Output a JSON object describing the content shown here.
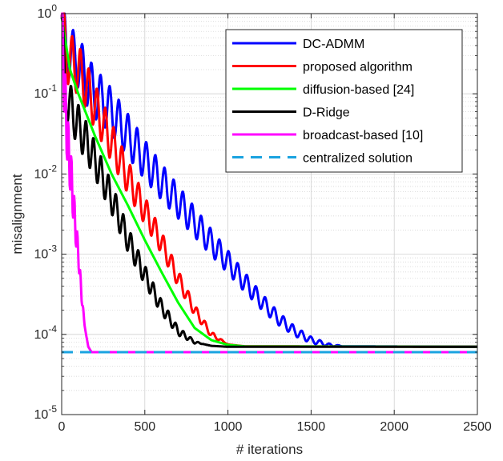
{
  "chart_data": {
    "type": "line",
    "xlabel": "# iterations",
    "ylabel": "misalignment",
    "xlim": [
      0,
      2500
    ],
    "ylim": [
      1e-05,
      1
    ],
    "yscale": "log",
    "grid": true,
    "legend_position": "top-right",
    "x_ticks": [
      0,
      500,
      1000,
      1500,
      2000,
      2500
    ],
    "y_ticks": [
      {
        "value": 1,
        "base": "10",
        "exp": "0"
      },
      {
        "value": 0.1,
        "base": "10",
        "exp": "-1"
      },
      {
        "value": 0.01,
        "base": "10",
        "exp": "-2"
      },
      {
        "value": 0.001,
        "base": "10",
        "exp": "-3"
      },
      {
        "value": 0.0001,
        "base": "10",
        "exp": "-4"
      },
      {
        "value": 1e-05,
        "base": "10",
        "exp": "-5"
      }
    ],
    "series": [
      {
        "name": "DC-ADMM",
        "color": "#0000ff",
        "dash": false,
        "points": [
          [
            0,
            0.9
          ],
          [
            30,
            0.35
          ],
          [
            60,
            0.3
          ],
          [
            100,
            0.25
          ],
          [
            150,
            0.15
          ],
          [
            200,
            0.1
          ],
          [
            250,
            0.08
          ],
          [
            300,
            0.06
          ],
          [
            400,
            0.03
          ],
          [
            500,
            0.015
          ],
          [
            600,
            0.008
          ],
          [
            700,
            0.0045
          ],
          [
            800,
            0.0025
          ],
          [
            900,
            0.0014
          ],
          [
            1000,
            0.0008
          ],
          [
            1100,
            0.00045
          ],
          [
            1200,
            0.00026
          ],
          [
            1300,
            0.00016
          ],
          [
            1400,
            0.00011
          ],
          [
            1500,
            8.5e-05
          ],
          [
            1600,
            7.4e-05
          ],
          [
            1700,
            7.1e-05
          ],
          [
            2500,
            7e-05
          ]
        ],
        "oscillation": {
          "period": 55,
          "amplitude": 0.35,
          "fade_end": 1700
        }
      },
      {
        "name": "proposed algorithm",
        "color": "#ff0000",
        "dash": false,
        "points": [
          [
            0,
            0.9
          ],
          [
            30,
            0.3
          ],
          [
            60,
            0.25
          ],
          [
            100,
            0.2
          ],
          [
            150,
            0.12
          ],
          [
            200,
            0.07
          ],
          [
            300,
            0.025
          ],
          [
            400,
            0.009
          ],
          [
            500,
            0.0035
          ],
          [
            600,
            0.0014
          ],
          [
            700,
            0.0005
          ],
          [
            800,
            0.0002
          ],
          [
            900,
            0.0001
          ],
          [
            1000,
            7.5e-05
          ],
          [
            1100,
            7.1e-05
          ],
          [
            2500,
            7e-05
          ]
        ],
        "oscillation": {
          "period": 50,
          "amplitude": 0.35,
          "fade_end": 1000
        }
      },
      {
        "name": "diffusion-based [24]",
        "color": "#00ff00",
        "dash": false,
        "points": [
          [
            0,
            0.9
          ],
          [
            50,
            0.2
          ],
          [
            100,
            0.1
          ],
          [
            200,
            0.03
          ],
          [
            300,
            0.01
          ],
          [
            400,
            0.004
          ],
          [
            500,
            0.0015
          ],
          [
            600,
            0.0006
          ],
          [
            700,
            0.00025
          ],
          [
            800,
            0.00012
          ],
          [
            900,
            8.5e-05
          ],
          [
            1000,
            7.4e-05
          ],
          [
            1100,
            7.1e-05
          ],
          [
            2500,
            7e-05
          ]
        ]
      },
      {
        "name": "D-Ridge",
        "color": "#000000",
        "dash": false,
        "points": [
          [
            0,
            0.9
          ],
          [
            20,
            0.1
          ],
          [
            100,
            0.04
          ],
          [
            150,
            0.025
          ],
          [
            200,
            0.015
          ],
          [
            300,
            0.005
          ],
          [
            400,
            0.0015
          ],
          [
            500,
            0.00055
          ],
          [
            600,
            0.00022
          ],
          [
            700,
            0.00011
          ],
          [
            800,
            8e-05
          ],
          [
            900,
            7.2e-05
          ],
          [
            1000,
            7e-05
          ],
          [
            2500,
            7e-05
          ]
        ],
        "oscillation": {
          "period": 45,
          "amplitude": 0.3,
          "fade_end": 850
        }
      },
      {
        "name": "broadcast-based [10]",
        "color": "#ff00ff",
        "dash": false,
        "points": [
          [
            0,
            0.9
          ],
          [
            20,
            0.08
          ],
          [
            40,
            0.02
          ],
          [
            60,
            0.008
          ],
          [
            80,
            0.0025
          ],
          [
            100,
            0.001
          ],
          [
            120,
            0.0003
          ],
          [
            140,
            0.00012
          ],
          [
            160,
            7e-05
          ],
          [
            180,
            6e-05
          ],
          [
            2500,
            6e-05
          ]
        ],
        "oscillation": {
          "period": 18,
          "amplitude": 0.5,
          "fade_end": 140
        }
      },
      {
        "name": "centralized solution",
        "color": "#1aa3e0",
        "dash": true,
        "points": [
          [
            0,
            6e-05
          ],
          [
            2500,
            6e-05
          ]
        ]
      }
    ]
  }
}
